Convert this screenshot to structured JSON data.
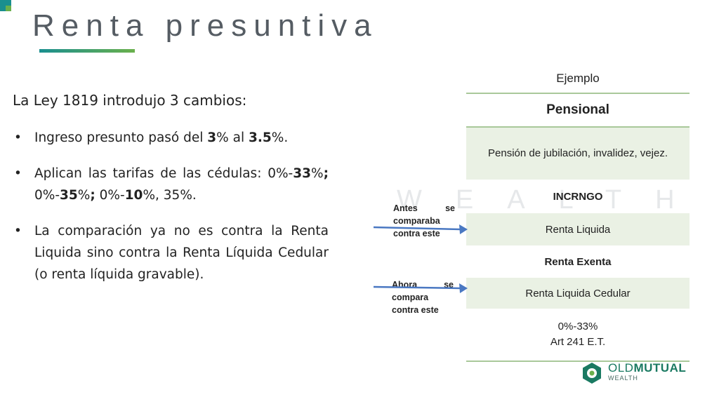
{
  "slide": {
    "title": "Renta presuntiva",
    "intro": "La Ley 1819 introdujo 3 cambios:",
    "bullets": {
      "b1": {
        "t1": "Ingreso presunto pasó del ",
        "n1": "3",
        "t2": "% al ",
        "n2": "3.5",
        "t3": "%."
      },
      "b2": {
        "t1": "Aplican las tarifas de las cédulas: 0%-",
        "n1": "33",
        "t2": "%",
        "s1": ";",
        "t3": " 0%-",
        "n2": "35",
        "t4": "%",
        "s2": ";",
        "t5": " 0%-",
        "n3": "10",
        "t6": "%, 35%."
      },
      "b3": {
        "text": "La comparación ya no es contra la Renta Liquida sino contra la Renta Líquida Cedular (o renta líquida gravable)."
      }
    },
    "watermark": "WEALTH"
  },
  "table": {
    "header": "Ejemplo",
    "pensional": "Pensional",
    "pension": "Pensión de jubilación, invalidez, vejez.",
    "incrngo": "INCRNGO",
    "renta_liquida": "Renta Liquida",
    "renta_exenta": "Renta Exenta",
    "renta_cedular": "Renta Liquida Cedular",
    "tarifa": "0%-33%",
    "articulo": "Art 241 E.T."
  },
  "notes": {
    "antes": {
      "w1": "Antes",
      "w2": "se",
      "rest": "comparaba contra este"
    },
    "ahora": {
      "w1": "Ahora",
      "w2": "se",
      "rest": "compara contra este"
    }
  },
  "logo": {
    "old": "OLD",
    "mutual": "MUTUAL",
    "sub": "WEALTH"
  },
  "colors": {
    "title": "#555c63",
    "accent_teal": "#1a8f8f",
    "accent_green": "#6ab04c",
    "table_fill": "#eaf1e4",
    "arrow": "#4a78c2",
    "brand": "#1a7a62"
  }
}
